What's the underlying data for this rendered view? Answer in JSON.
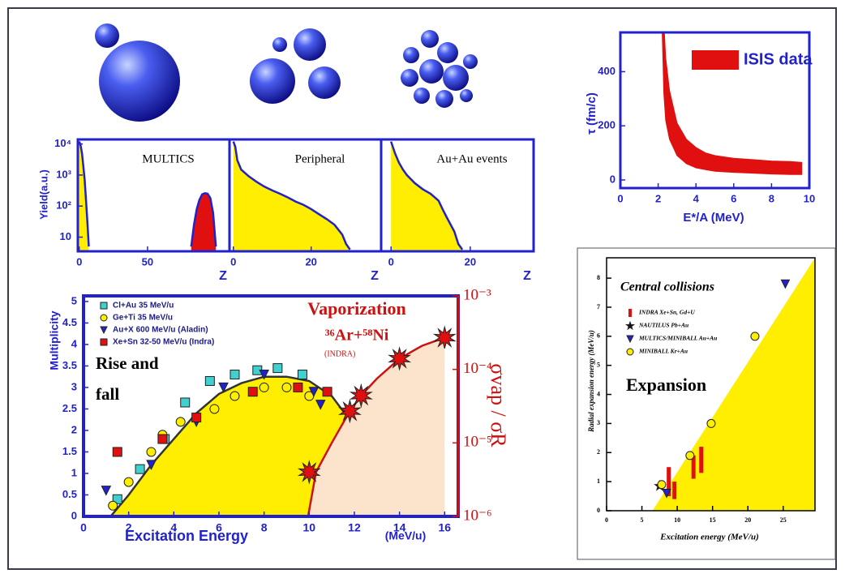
{
  "chart_data": [
    {
      "type": "area",
      "xlim": [
        0,
        10
      ],
      "xticks": [
        0,
        2,
        4,
        6,
        8,
        10
      ],
      "ylim": [
        -30,
        545
      ],
      "yticks": [
        0,
        200,
        400
      ],
      "xlabel": "E*/A (MeV)",
      "ylabel": "τ (fm/c)",
      "legend": "upper right",
      "series": [
        {
          "name": "ISIS data",
          "color": "#e01010",
          "marker": "band",
          "x": [
            2.2,
            2.3,
            2.4,
            2.6,
            3,
            3.5,
            4,
            4.5,
            5,
            6,
            7,
            8,
            9,
            9.6
          ],
          "values": [
            580,
            580,
            450,
            330,
            210,
            150,
            120,
            100,
            90,
            80,
            75,
            70,
            68,
            65
          ],
          "low": [
            580,
            320,
            220,
            150,
            90,
            60,
            45,
            38,
            32,
            28,
            25,
            22,
            20,
            20
          ]
        }
      ]
    },
    {
      "type": "area",
      "title": "MULTICS",
      "xlim": [
        -1,
        110
      ],
      "xticks": [
        0,
        50
      ],
      "ylim": [
        3.5,
        14000
      ],
      "ylog": true,
      "yticks": [
        10,
        {
          "value": 100,
          "label": "10²"
        },
        {
          "value": 1000,
          "label": "10³"
        },
        {
          "value": 10000,
          "label": "10⁴"
        }
      ],
      "xlabel": "Z",
      "ylabel": "Yield(a.u.)",
      "series": [
        {
          "color": "#2222cc",
          "fill": "#ffee00",
          "marker": "area",
          "x": [
            0,
            1,
            2,
            3,
            4,
            5,
            6,
            7
          ],
          "values": [
            12000,
            9000,
            5000,
            2000,
            700,
            150,
            30,
            5
          ]
        },
        {
          "color": "#2222cc",
          "fill": "#e01010",
          "marker": "area",
          "x": [
            82,
            84,
            86,
            88,
            90,
            92,
            94,
            96,
            98,
            100
          ],
          "values": [
            5,
            25,
            80,
            160,
            240,
            260,
            250,
            180,
            60,
            5
          ]
        }
      ]
    },
    {
      "type": "area",
      "title": "Peripheral",
      "xlim": [
        -1,
        38
      ],
      "xticks": [
        0,
        20
      ],
      "ylim": [
        3.5,
        14000
      ],
      "ylog": true,
      "xlabel": "Z",
      "series": [
        {
          "color": "#2222cc",
          "fill": "#ffee00",
          "marker": "area",
          "x": [
            0,
            0.5,
            1,
            2,
            4,
            6,
            8,
            10,
            12,
            14,
            16,
            18,
            20,
            22,
            24,
            26,
            28,
            29,
            30
          ],
          "values": [
            12000,
            8000,
            3000,
            1500,
            900,
            600,
            420,
            320,
            250,
            190,
            140,
            110,
            80,
            55,
            38,
            25,
            12,
            6,
            4
          ]
        }
      ]
    },
    {
      "type": "area",
      "title": "Au+Au events",
      "xlim": [
        -2.5,
        36
      ],
      "xticks": [
        0,
        20
      ],
      "ylim": [
        3.5,
        14000
      ],
      "ylog": true,
      "xlabel": "Z",
      "series": [
        {
          "color": "#2222cc",
          "fill": "#ffee00",
          "marker": "area",
          "x": [
            0,
            1,
            2,
            3,
            4,
            6,
            8,
            10,
            12,
            13,
            14,
            16,
            17,
            18
          ],
          "values": [
            12000,
            5000,
            2500,
            1500,
            1000,
            550,
            350,
            250,
            150,
            80,
            45,
            15,
            6,
            4
          ]
        }
      ]
    },
    {
      "type": "scatter",
      "xlim": [
        0,
        16.6
      ],
      "xticks": [
        0,
        2,
        4,
        6,
        8,
        10,
        12,
        14,
        16
      ],
      "ylim": [
        0,
        5.13
      ],
      "yticks": [
        0,
        0.5,
        1,
        1.5,
        2,
        2.5,
        3,
        3.5,
        4,
        4.5,
        5
      ],
      "y2lim": [
        1e-06,
        0.001
      ],
      "y2log": true,
      "y2ticks": [
        {
          "value": 1e-06,
          "label": "10⁻⁶"
        },
        {
          "value": 1e-05,
          "label": "10⁻⁵"
        },
        {
          "value": 0.0001,
          "label": "10⁻⁴"
        },
        {
          "value": 0.001,
          "label": "10⁻³"
        }
      ],
      "xlabel": "Excitation Energy",
      "ylabel": "Multiplicity",
      "y2label": "σvap / σR",
      "legend": "upper left",
      "annotations": [
        "Rise and",
        "fall",
        "Vaporization",
        "³⁶Ar+⁵⁸Ni",
        "(INDRA)",
        "(MeV/u)"
      ],
      "series": [
        {
          "color": "#333333",
          "fill": "#ffee00",
          "marker": "area",
          "x": [
            1.2,
            2,
            3,
            4,
            5,
            6,
            7,
            8,
            9,
            10,
            11,
            12,
            12.5,
            13.2
          ],
          "values": [
            0,
            0.5,
            1.2,
            1.8,
            2.4,
            2.85,
            3.1,
            3.25,
            3.25,
            3.15,
            2.8,
            2.1,
            1.4,
            0
          ]
        },
        {
          "color": "#cc1111",
          "fill": "#fbe3cc",
          "marker": "area",
          "axis": "y2",
          "x": [
            9.95,
            10.3,
            11,
            11.8,
            12.3,
            13,
            14,
            15,
            16
          ],
          "values": [
            1e-06,
            4e-06,
            1e-05,
            2.7e-05,
            4.4e-05,
            7.5e-05,
            0.00014,
            0.00021,
            0.00027
          ]
        },
        {
          "name": "Cl+Au 35 MeV/u",
          "color": "#40d0d0",
          "marker": "square",
          "x": [
            1.5,
            2.5,
            3.6,
            4.5,
            5.6,
            6.7,
            7.7,
            8.6,
            9.7
          ],
          "values": [
            0.4,
            1.1,
            1.8,
            2.65,
            3.15,
            3.3,
            3.4,
            3.45,
            3.3
          ]
        },
        {
          "name": "Ge+Ti 35 MeV/u",
          "color": "#ffee00",
          "marker": "circle",
          "x": [
            1.3,
            2,
            3,
            3.5,
            4.3,
            5.8,
            6.7,
            8,
            9,
            10
          ],
          "values": [
            0.25,
            0.8,
            1.5,
            1.9,
            2.2,
            2.5,
            2.8,
            3,
            3,
            2.8
          ]
        },
        {
          "name": "Au+X 600 MeV/u (Aladin)",
          "color": "#2222cc",
          "marker": "triangle",
          "x": [
            1,
            3,
            5,
            6.2,
            8,
            10.2,
            10.5
          ],
          "values": [
            0.6,
            1.2,
            2.2,
            3,
            3.3,
            2.9,
            2.6
          ]
        },
        {
          "name": "Xe+Sn 32-50 MeV/u (Indra)",
          "color": "#e01010",
          "marker": "square",
          "x": [
            1.5,
            3.5,
            5,
            7.5,
            9.5,
            10.8
          ],
          "values": [
            1.5,
            1.8,
            2.3,
            2.9,
            3,
            2.9
          ]
        },
        {
          "color": "#e01010",
          "marker": "burst",
          "axis": "y2",
          "x": [
            10,
            11.8,
            12.3,
            14,
            16
          ],
          "values": [
            4e-06,
            2.7e-05,
            4.4e-05,
            0.00014,
            0.00027
          ]
        }
      ]
    },
    {
      "type": "scatter",
      "title": "Central collisions",
      "xlim": [
        0,
        29.5
      ],
      "xticks": [
        0,
        5,
        10,
        15,
        20,
        25
      ],
      "ylim": [
        0,
        8.7
      ],
      "yticks": [
        0,
        1,
        2,
        3,
        4,
        5,
        6,
        7,
        8
      ],
      "xlabel": "Excitation energy (MeV/u)",
      "ylabel": "Radial expansion energy (MeV/u)",
      "legend": "upper left",
      "annotations": [
        "Expansion"
      ],
      "series": [
        {
          "color": "#ffee00",
          "fill": "#ffee00",
          "marker": "area",
          "x": [
            6.5,
            29.5
          ],
          "values": [
            0,
            8.7
          ]
        },
        {
          "name": "INDRA Xe+Sn, Gd+U",
          "color": "#e01010",
          "marker": "errbar",
          "x": [
            8.8,
            9.6,
            12.3,
            13.4
          ],
          "values": [
            1,
            0.7,
            1.5,
            1.75
          ],
          "errors": [
            0.5,
            0.3,
            0.4,
            0.45
          ]
        },
        {
          "name": "NAUTILUS Pb+Au",
          "color": "#111111",
          "marker": "star",
          "x": [
            7.5
          ],
          "values": [
            0.85
          ]
        },
        {
          "name": "MULTICS/MINIBALL Au+Au",
          "color": "#2222cc",
          "marker": "triangle",
          "x": [
            8.5,
            25.3
          ],
          "values": [
            0.6,
            7.8
          ]
        },
        {
          "name": "MINIBALL Kr+Au",
          "color": "#ffee00",
          "marker": "circle",
          "x": [
            7.8,
            11.8,
            14.8,
            21
          ],
          "values": [
            0.9,
            1.9,
            3,
            6
          ]
        }
      ]
    }
  ]
}
